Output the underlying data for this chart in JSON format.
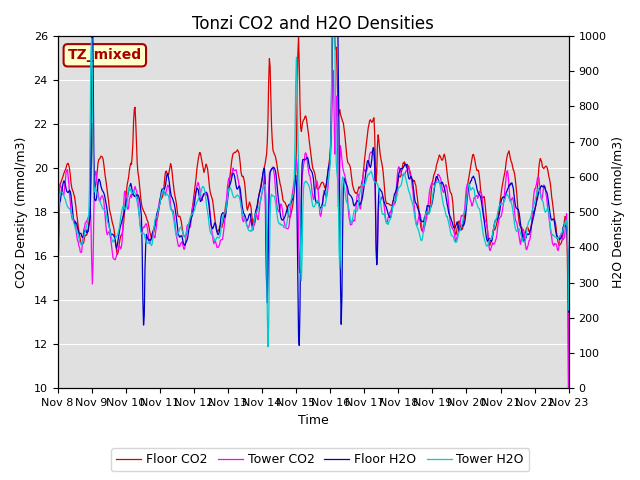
{
  "title": "Tonzi CO2 and H2O Densities",
  "xlabel": "Time",
  "ylabel_left": "CO2 Density (mmol/m3)",
  "ylabel_right": "H2O Density (mmol/m3)",
  "ylim_left": [
    10,
    26
  ],
  "ylim_right": [
    0,
    1000
  ],
  "annotation": "TZ_mixed",
  "annotation_color": "#aa0000",
  "annotation_bg": "#ffffcc",
  "annotation_edge": "#aa0000",
  "legend_entries": [
    "Floor CO2",
    "Tower CO2",
    "Floor H2O",
    "Tower H2O"
  ],
  "line_colors": {
    "floor_co2": "#dd0000",
    "tower_co2": "#ff00ff",
    "floor_h2o": "#0000cc",
    "tower_h2o": "#00cccc"
  },
  "xtick_labels": [
    "Nov 8",
    "Nov 9",
    "Nov 10",
    "Nov 11",
    "Nov 12",
    "Nov 13",
    "Nov 14",
    "Nov 15",
    "Nov 16",
    "Nov 17",
    "Nov 18",
    "Nov 19",
    "Nov 20",
    "Nov 21",
    "Nov 22",
    "Nov 23"
  ],
  "yticks_left": [
    10,
    12,
    14,
    16,
    18,
    20,
    22,
    24,
    26
  ],
  "yticks_right": [
    0,
    100,
    200,
    300,
    400,
    500,
    600,
    700,
    800,
    900,
    1000
  ],
  "background_color": "#e0e0e0",
  "grid_color": "#ffffff",
  "title_fontsize": 12,
  "axis_fontsize": 9,
  "tick_fontsize": 8,
  "legend_fontsize": 9,
  "linewidth": 0.9,
  "seed": 12345
}
